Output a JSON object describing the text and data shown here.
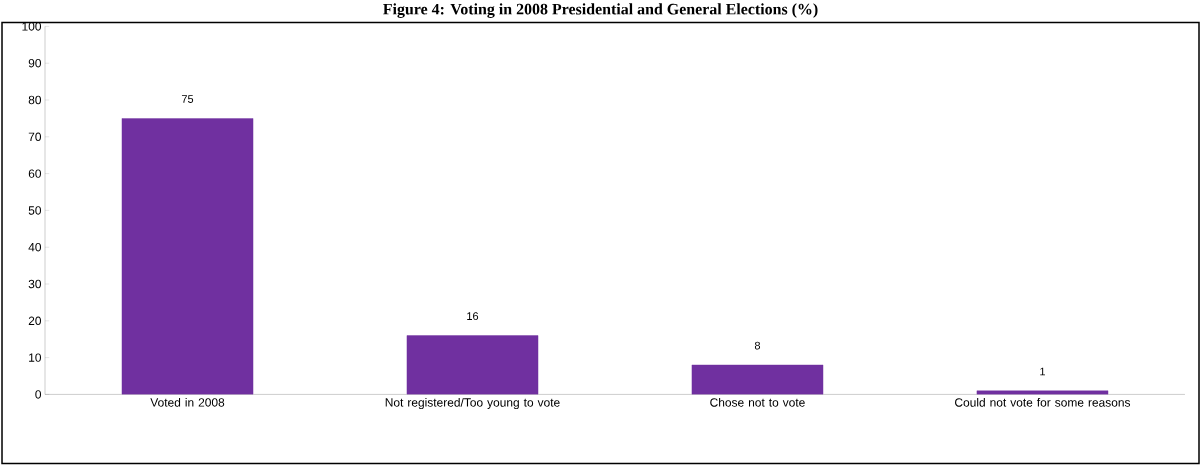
{
  "chart_data": {
    "type": "bar",
    "title": "Figure 4: Voting in 2008 Presidential and General Elections (%)",
    "categories": [
      "Voted in 2008",
      "Not registered/Too young to vote",
      "Chose not to vote",
      "Could not vote for some reasons"
    ],
    "values": [
      75,
      16,
      8,
      1
    ],
    "color": "#7030a0",
    "ylim": [
      0,
      100
    ],
    "yticks": [
      0,
      10,
      20,
      30,
      40,
      50,
      60,
      70,
      80,
      90,
      100
    ],
    "data_labels": true
  }
}
